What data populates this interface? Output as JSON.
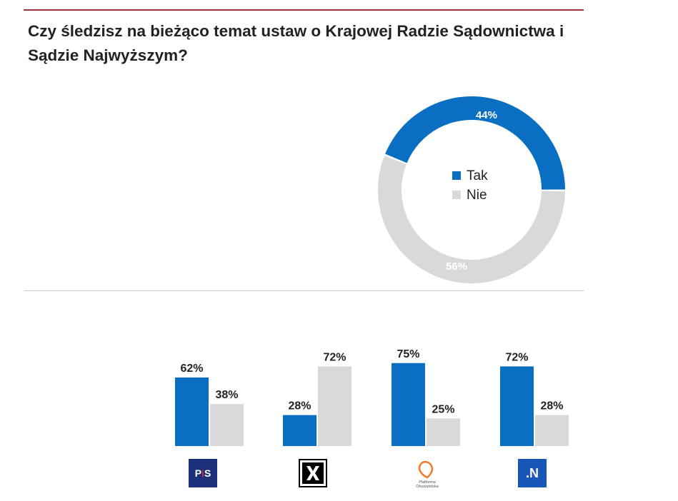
{
  "title": "Czy śledzisz na bieżąco temat ustaw o Krajowej Radzie Sądownictwa i Sądzie Najwyższym?",
  "colors": {
    "tak": "#0a6fc2",
    "nie": "#d9d9d9",
    "rule": "#a0313a"
  },
  "chart_data": [
    {
      "type": "pie",
      "donut": true,
      "slices": [
        {
          "label": "Tak",
          "value": 44,
          "label_text": "44%"
        },
        {
          "label": "Nie",
          "value": 56,
          "label_text": "56%"
        }
      ],
      "legend": [
        "Tak",
        "Nie"
      ],
      "legend_placement": "center"
    },
    {
      "type": "bar",
      "categories": [
        "PiS",
        "Kukiz'15",
        "Platforma Obywatelska",
        "Nowoczesna"
      ],
      "series": [
        {
          "name": "Tak",
          "values": [
            62,
            28,
            75,
            72
          ],
          "labels": [
            "62%",
            "28%",
            "75%",
            "72%"
          ]
        },
        {
          "name": "Nie",
          "values": [
            38,
            72,
            25,
            28
          ],
          "labels": [
            "38%",
            "72%",
            "25%",
            "28%"
          ]
        }
      ],
      "ylim": [
        0,
        100
      ]
    }
  ],
  "logos": [
    {
      "icon": "pis-logo-icon",
      "text_main": "P",
      "text_accent": "i",
      "text_end": "S"
    },
    {
      "icon": "kukiz-logo-icon"
    },
    {
      "icon": "platforma-obywatelska-logo-icon",
      "line1": "Platforma",
      "line2": "Obywatelska"
    },
    {
      "icon": "nowoczesna-logo-icon",
      "text": ".N"
    }
  ]
}
